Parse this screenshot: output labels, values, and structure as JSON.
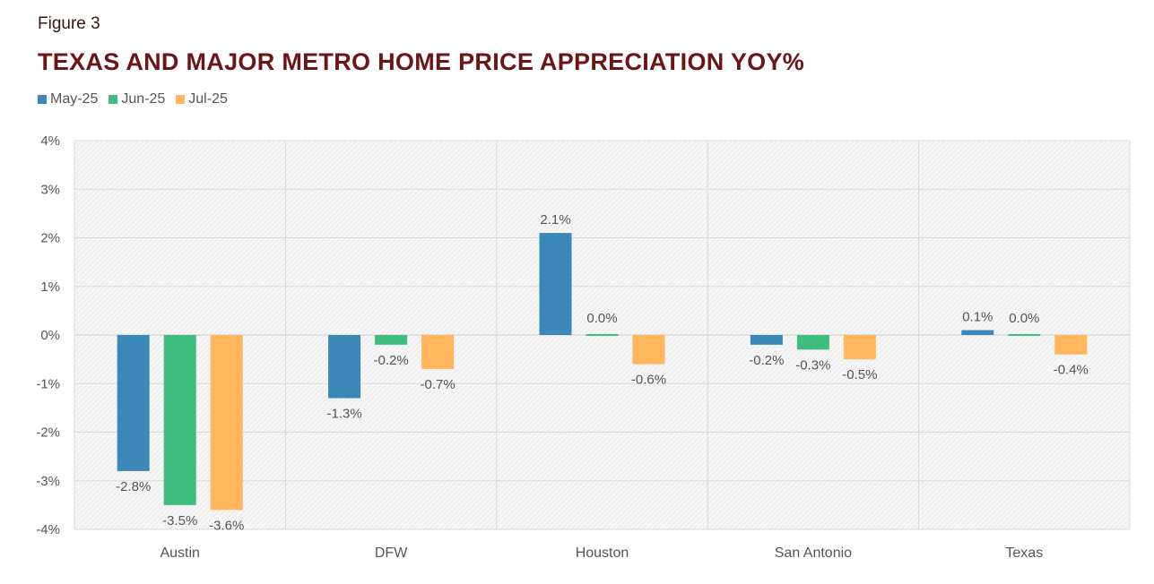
{
  "figure_label": "Figure 3",
  "chart_data": {
    "type": "bar",
    "title": "TEXAS AND MAJOR METRO HOME PRICE APPRECIATION YOY%",
    "categories": [
      "Austin",
      "DFW",
      "Houston",
      "San Antonio",
      "Texas"
    ],
    "series": [
      {
        "name": "May-25",
        "color": "#3a87b8",
        "values": [
          -2.8,
          -1.3,
          2.1,
          -0.2,
          0.1
        ],
        "labels": [
          "-2.8%",
          "-1.3%",
          "2.1%",
          "-0.2%",
          "0.1%"
        ]
      },
      {
        "name": "Jun-25",
        "color": "#3ebd7e",
        "values": [
          -3.5,
          -0.2,
          0.0,
          -0.3,
          0.0
        ],
        "labels": [
          "-3.5%",
          "-0.2%",
          "0.0%",
          "-0.3%",
          "0.0%"
        ]
      },
      {
        "name": "Jul-25",
        "color": "#ffb65c",
        "values": [
          -3.6,
          -0.7,
          -0.6,
          -0.5,
          -0.4
        ],
        "labels": [
          "-3.6%",
          "-0.7%",
          "-0.6%",
          "-0.5%",
          "-0.4%"
        ]
      }
    ],
    "yticks": [
      "4%",
      "3%",
      "2%",
      "1%",
      "0%",
      "-1%",
      "-2%",
      "-3%",
      "-4%"
    ],
    "ylim": [
      -4,
      4
    ],
    "xlabel": "",
    "ylabel": "",
    "legend_position": "top-left",
    "grid": true
  }
}
